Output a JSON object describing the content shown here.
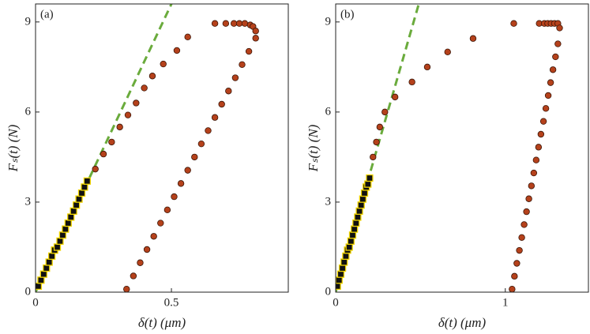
{
  "chart_data": [
    {
      "type": "scatter",
      "panel_label": "(a)",
      "xlabel": "δ(t) (μm)",
      "ylabel": "Fₛ(t) (N)",
      "xlim": [
        0,
        0.93
      ],
      "ylim": [
        0,
        9.6
      ],
      "xticks": [
        0,
        0.5
      ],
      "yticks": [
        0,
        3,
        6,
        9
      ],
      "series": [
        {
          "marker": "dashed",
          "color": "#6aab3c",
          "x": [
            0,
            0.5
          ],
          "values": [
            0,
            9.6
          ]
        },
        {
          "marker": "circle",
          "color": "#b5411b",
          "x": [
            0.22,
            0.25,
            0.28,
            0.31,
            0.34,
            0.37,
            0.4,
            0.43,
            0.47,
            0.52,
            0.56,
            0.66,
            0.7,
            0.73,
            0.75,
            0.77,
            0.79,
            0.8,
            0.81
          ],
          "values": [
            4.1,
            4.6,
            5.0,
            5.5,
            5.9,
            6.3,
            6.8,
            7.2,
            7.6,
            8.05,
            8.5,
            8.95,
            8.95,
            8.95,
            8.95,
            8.95,
            8.9,
            8.85,
            8.7
          ]
        },
        {
          "marker": "circle",
          "color": "#b5411b",
          "x": [
            0.335,
            0.36,
            0.385,
            0.41,
            0.435,
            0.46,
            0.485,
            0.51,
            0.535,
            0.56,
            0.585,
            0.61,
            0.635,
            0.66,
            0.685,
            0.71,
            0.735,
            0.76,
            0.785,
            0.81
          ],
          "values": [
            0.1,
            0.54,
            0.98,
            1.42,
            1.86,
            2.3,
            2.74,
            3.18,
            3.62,
            4.06,
            4.5,
            4.94,
            5.38,
            5.82,
            6.26,
            6.7,
            7.14,
            7.58,
            8.02,
            8.46
          ]
        },
        {
          "marker": "square",
          "color": "#111111",
          "x": [
            0.01,
            0.02,
            0.03,
            0.04,
            0.05,
            0.06,
            0.07,
            0.08,
            0.09,
            0.1,
            0.11,
            0.12,
            0.13,
            0.14,
            0.15,
            0.16,
            0.17,
            0.18,
            0.19
          ],
          "values": [
            0.2,
            0.4,
            0.6,
            0.8,
            1.0,
            1.2,
            1.4,
            1.5,
            1.7,
            1.9,
            2.1,
            2.3,
            2.5,
            2.7,
            2.9,
            3.1,
            3.3,
            3.5,
            3.7
          ]
        }
      ]
    },
    {
      "type": "scatter",
      "panel_label": "(b)",
      "xlabel": "δ(t) (μm)",
      "ylabel": "Fₛ(t) (N)",
      "xlim": [
        0,
        1.49
      ],
      "ylim": [
        0,
        9.6
      ],
      "xticks": [
        0,
        1
      ],
      "yticks": [
        0,
        3,
        6,
        9
      ],
      "series": [
        {
          "marker": "dashed",
          "color": "#6aab3c",
          "x": [
            0,
            0.49
          ],
          "values": [
            0,
            9.6
          ]
        },
        {
          "marker": "circle",
          "color": "#b5411b",
          "x": [
            0.22,
            0.24,
            0.26,
            0.29,
            0.35,
            0.45,
            0.54,
            0.66,
            0.81,
            1.05,
            1.2,
            1.23,
            1.25,
            1.27,
            1.29,
            1.31,
            1.32
          ],
          "values": [
            4.5,
            5.0,
            5.5,
            6.0,
            6.5,
            7.0,
            7.5,
            8.0,
            8.45,
            8.95,
            8.95,
            8.95,
            8.95,
            8.95,
            8.95,
            8.95,
            8.8
          ]
        },
        {
          "marker": "circle",
          "color": "#b5411b",
          "x": [
            1.04,
            1.054,
            1.068,
            1.083,
            1.097,
            1.111,
            1.125,
            1.139,
            1.154,
            1.168,
            1.182,
            1.196,
            1.21,
            1.225,
            1.239,
            1.253,
            1.267,
            1.281,
            1.296,
            1.31
          ],
          "values": [
            0.1,
            0.53,
            0.96,
            1.39,
            1.82,
            2.25,
            2.68,
            3.11,
            3.54,
            3.97,
            4.4,
            4.83,
            5.26,
            5.69,
            6.12,
            6.55,
            6.98,
            7.41,
            7.84,
            8.27
          ]
        },
        {
          "marker": "square",
          "color": "#111111",
          "x": [
            0.01,
            0.02,
            0.03,
            0.04,
            0.05,
            0.06,
            0.07,
            0.08,
            0.09,
            0.1,
            0.11,
            0.12,
            0.13,
            0.14,
            0.15,
            0.16,
            0.17,
            0.18,
            0.19,
            0.2
          ],
          "values": [
            0.2,
            0.4,
            0.6,
            0.8,
            1.0,
            1.2,
            1.4,
            1.5,
            1.7,
            1.9,
            2.1,
            2.3,
            2.5,
            2.7,
            2.9,
            3.1,
            3.3,
            3.5,
            3.6,
            3.8
          ]
        }
      ]
    }
  ]
}
